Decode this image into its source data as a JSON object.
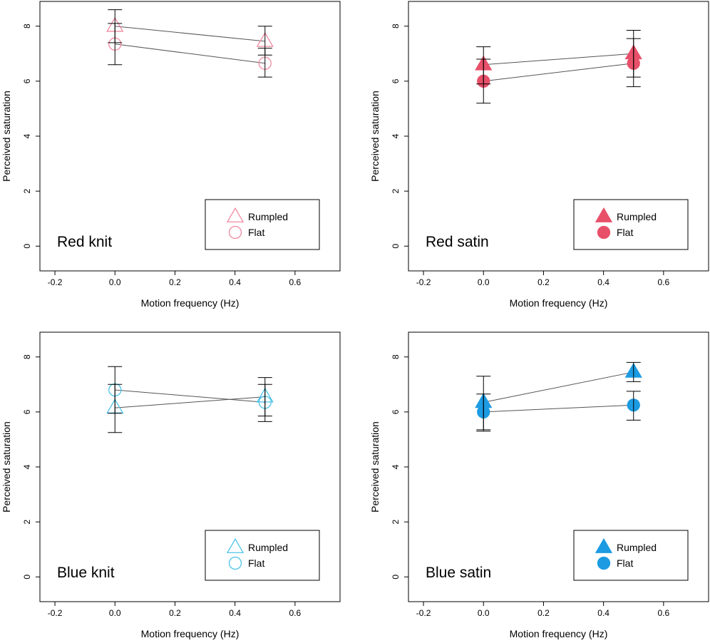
{
  "chart_data": [
    {
      "type": "scatter",
      "title": "",
      "panel_label": "Red knit",
      "xlabel": "Motion frequency (Hz)",
      "ylabel": "Perceived saturation",
      "xlim": [
        -0.25,
        0.75
      ],
      "ylim": [
        -0.9,
        8.9
      ],
      "xticks": [
        -0.2,
        0.0,
        0.2,
        0.4,
        0.6
      ],
      "xtick_labels": [
        "-0.2",
        "0.0",
        "0.2",
        "0.4",
        "0.6"
      ],
      "yticks": [
        0,
        2,
        4,
        6,
        8
      ],
      "ytick_labels": [
        "0",
        "2",
        "4",
        "6",
        "8"
      ],
      "color": "#f08aa0",
      "filled": false,
      "legend": {
        "entries": [
          "Rumpled",
          "Flat"
        ],
        "placement": "bottom-right"
      },
      "series": [
        {
          "name": "Rumpled",
          "marker": "triangle",
          "x": [
            0.0,
            0.5
          ],
          "y": [
            8.0,
            7.45
          ],
          "err_low": [
            7.4,
            6.95
          ],
          "err_high": [
            8.6,
            8.0
          ]
        },
        {
          "name": "Flat",
          "marker": "circle",
          "x": [
            0.0,
            0.5
          ],
          "y": [
            7.35,
            6.65
          ],
          "err_low": [
            6.6,
            6.15
          ],
          "err_high": [
            8.1,
            7.2
          ]
        }
      ]
    },
    {
      "type": "scatter",
      "title": "",
      "panel_label": "Red satin",
      "xlabel": "Motion frequency (Hz)",
      "ylabel": "Perceived saturation",
      "xlim": [
        -0.25,
        0.75
      ],
      "ylim": [
        -0.9,
        8.9
      ],
      "xticks": [
        -0.2,
        0.0,
        0.2,
        0.4,
        0.6
      ],
      "xtick_labels": [
        "-0.2",
        "0.0",
        "0.2",
        "0.4",
        "0.6"
      ],
      "yticks": [
        0,
        2,
        4,
        6,
        8
      ],
      "ytick_labels": [
        "0",
        "2",
        "4",
        "6",
        "8"
      ],
      "color": "#e8506a",
      "filled": true,
      "legend": {
        "entries": [
          "Rumpled",
          "Flat"
        ],
        "placement": "bottom-right"
      },
      "series": [
        {
          "name": "Rumpled",
          "marker": "triangle",
          "x": [
            0.0,
            0.5
          ],
          "y": [
            6.6,
            7.0
          ],
          "err_low": [
            5.9,
            6.15
          ],
          "err_high": [
            7.25,
            7.85
          ]
        },
        {
          "name": "Flat",
          "marker": "circle",
          "x": [
            0.0,
            0.5
          ],
          "y": [
            6.0,
            6.65
          ],
          "err_low": [
            5.2,
            5.8
          ],
          "err_high": [
            6.8,
            7.55
          ]
        }
      ]
    },
    {
      "type": "scatter",
      "title": "",
      "panel_label": "Blue knit",
      "xlabel": "Motion frequency (Hz)",
      "ylabel": "Perceived saturation",
      "xlim": [
        -0.25,
        0.75
      ],
      "ylim": [
        -0.9,
        8.9
      ],
      "xticks": [
        -0.2,
        0.0,
        0.2,
        0.4,
        0.6
      ],
      "xtick_labels": [
        "-0.2",
        "0.0",
        "0.2",
        "0.4",
        "0.6"
      ],
      "yticks": [
        0,
        2,
        4,
        6,
        8
      ],
      "ytick_labels": [
        "0",
        "2",
        "4",
        "6",
        "8"
      ],
      "color": "#4cc3e8",
      "filled": false,
      "legend": {
        "entries": [
          "Rumpled",
          "Flat"
        ],
        "placement": "bottom-right"
      },
      "series": [
        {
          "name": "Rumpled",
          "marker": "triangle",
          "x": [
            0.0,
            0.5
          ],
          "y": [
            6.15,
            6.55
          ],
          "err_low": [
            5.25,
            5.85
          ],
          "err_high": [
            7.0,
            7.25
          ]
        },
        {
          "name": "Flat",
          "marker": "circle",
          "x": [
            0.0,
            0.5
          ],
          "y": [
            6.8,
            6.35
          ],
          "err_low": [
            5.95,
            5.65
          ],
          "err_high": [
            7.65,
            7.0
          ]
        }
      ]
    },
    {
      "type": "scatter",
      "title": "",
      "panel_label": "Blue satin",
      "xlabel": "Motion frequency (Hz)",
      "ylabel": "Perceived saturation",
      "xlim": [
        -0.25,
        0.75
      ],
      "ylim": [
        -0.9,
        8.9
      ],
      "xticks": [
        -0.2,
        0.0,
        0.2,
        0.4,
        0.6
      ],
      "xtick_labels": [
        "-0.2",
        "0.0",
        "0.2",
        "0.4",
        "0.6"
      ],
      "yticks": [
        0,
        2,
        4,
        6,
        8
      ],
      "ytick_labels": [
        "0",
        "2",
        "4",
        "6",
        "8"
      ],
      "color": "#1c9be2",
      "filled": true,
      "legend": {
        "entries": [
          "Rumpled",
          "Flat"
        ],
        "placement": "bottom-right"
      },
      "series": [
        {
          "name": "Rumpled",
          "marker": "triangle",
          "x": [
            0.0,
            0.5
          ],
          "y": [
            6.35,
            7.45
          ],
          "err_low": [
            5.35,
            7.1
          ],
          "err_high": [
            7.3,
            7.8
          ]
        },
        {
          "name": "Flat",
          "marker": "circle",
          "x": [
            0.0,
            0.5
          ],
          "y": [
            6.0,
            6.25
          ],
          "err_low": [
            5.3,
            5.7
          ],
          "err_high": [
            6.65,
            6.75
          ]
        }
      ]
    }
  ]
}
